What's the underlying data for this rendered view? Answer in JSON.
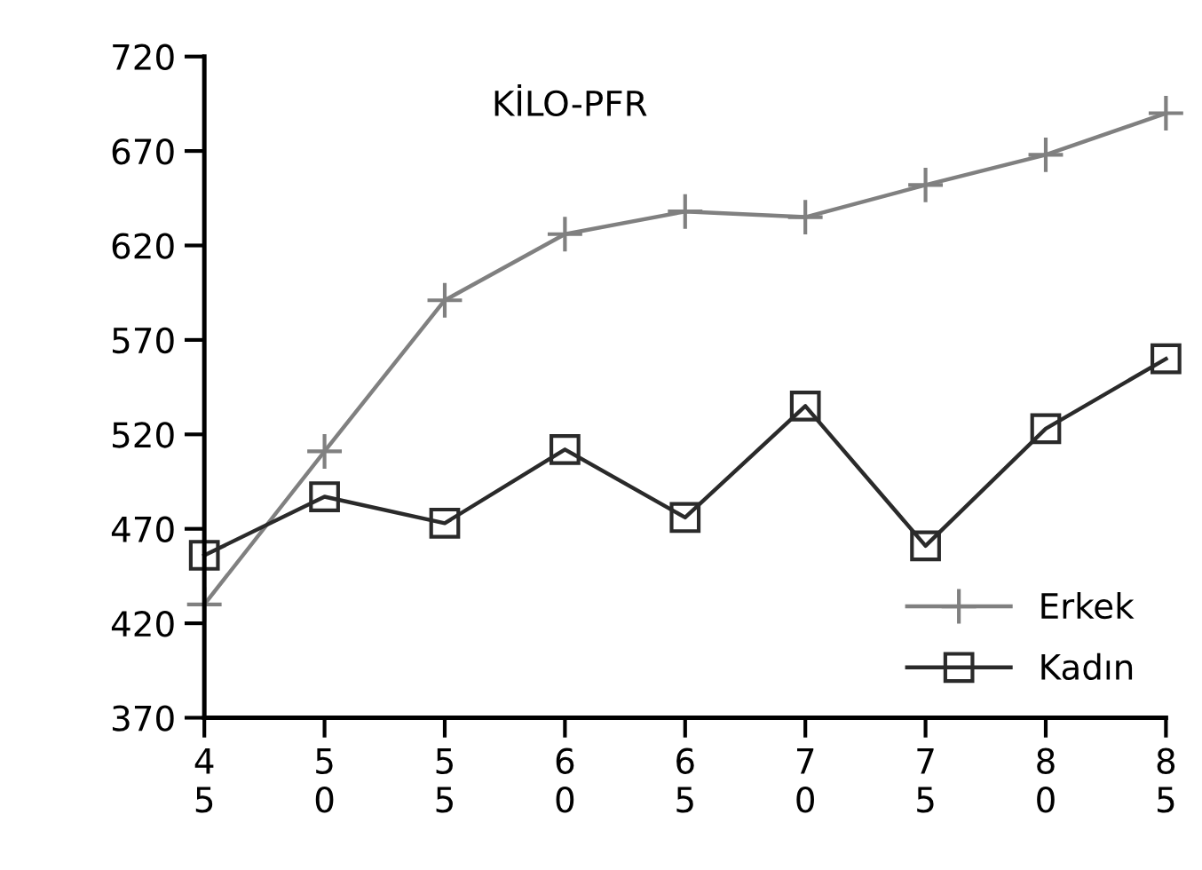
{
  "chart_data": {
    "type": "line",
    "title": "KİLO-PFR",
    "categories": [
      "4\n5",
      "5\n0",
      "5\n5",
      "6\n0",
      "6\n5",
      "7\n0",
      "7\n5",
      "8\n0",
      "8\n5"
    ],
    "series": [
      {
        "name": "Erkek",
        "color": "#808080",
        "marker": "cross",
        "values": [
          430,
          511,
          591,
          626,
          638,
          635,
          652,
          668,
          690
        ]
      },
      {
        "name": "Kadın",
        "color": "#2a2a2a",
        "marker": "square",
        "values": [
          456,
          487,
          473,
          512,
          476,
          535,
          461,
          523,
          560
        ]
      }
    ],
    "ylim": [
      370,
      720
    ],
    "yticks": [
      370,
      420,
      470,
      520,
      570,
      620,
      670,
      720
    ],
    "grid": false,
    "legend": "bottom right",
    "line_style": "solid"
  }
}
